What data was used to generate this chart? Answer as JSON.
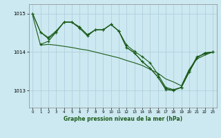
{
  "title": "Graphe pression niveau de la mer (hPa)",
  "bg_color": "#cce8f0",
  "grid_color": "#aaccdc",
  "line_color": "#1a5c1a",
  "xlim": [
    -0.5,
    23.5
  ],
  "ylim": [
    1012.55,
    1015.25
  ],
  "yticks": [
    1013,
    1014,
    1015
  ],
  "xticks": [
    0,
    1,
    2,
    3,
    4,
    5,
    6,
    7,
    8,
    9,
    10,
    11,
    12,
    13,
    14,
    15,
    16,
    17,
    18,
    19,
    20,
    21,
    22,
    23
  ],
  "line1_x": [
    0,
    1,
    2,
    3,
    4,
    5,
    6,
    7,
    8,
    9,
    10,
    11,
    12,
    13,
    14,
    15,
    16,
    17,
    18,
    19,
    20,
    21,
    22,
    23
  ],
  "line1_y": [
    1015.0,
    1014.52,
    1014.35,
    1014.52,
    1014.78,
    1014.78,
    1014.62,
    1014.42,
    1014.58,
    1014.58,
    1014.72,
    1014.55,
    1014.18,
    1014.02,
    1013.88,
    1013.72,
    1013.42,
    1013.08,
    1013.02,
    1013.08,
    1013.52,
    1013.88,
    1013.95,
    1014.0
  ],
  "line2_x": [
    0,
    1,
    2,
    3,
    4,
    5,
    6,
    7,
    8,
    9,
    10,
    11,
    12,
    13,
    14,
    15,
    16,
    17,
    18,
    19,
    20,
    21,
    22,
    23
  ],
  "line2_y": [
    1015.0,
    1014.52,
    1014.38,
    1014.55,
    1014.78,
    1014.78,
    1014.65,
    1014.45,
    1014.58,
    1014.58,
    1014.72,
    1014.55,
    1014.12,
    1013.98,
    1013.75,
    1013.58,
    1013.35,
    1013.02,
    1013.0,
    1013.08,
    1013.48,
    1013.85,
    1013.98,
    1014.0
  ],
  "line3_x": [
    1,
    2,
    3,
    4,
    5,
    6,
    7,
    8,
    9,
    10,
    11,
    12,
    13,
    14,
    15,
    16,
    17,
    18,
    19,
    20,
    21,
    22,
    23
  ],
  "line3_y": [
    1014.2,
    1014.28,
    1014.52,
    1014.78,
    1014.78,
    1014.65,
    1014.45,
    1014.58,
    1014.58,
    1014.72,
    1014.55,
    1014.12,
    1013.98,
    1013.75,
    1013.58,
    1013.35,
    1013.05,
    1013.0,
    1013.08,
    1013.48,
    1013.85,
    1013.98,
    1014.0
  ],
  "line4_x": [
    0,
    1,
    2,
    3,
    4,
    5,
    6,
    7,
    8,
    9,
    10,
    11,
    12,
    13,
    14,
    15,
    16,
    17,
    18,
    19,
    20,
    21,
    22,
    23
  ],
  "line4_y": [
    1014.95,
    1014.18,
    1014.2,
    1014.18,
    1014.15,
    1014.12,
    1014.08,
    1014.05,
    1014.0,
    1013.95,
    1013.9,
    1013.85,
    1013.78,
    1013.72,
    1013.65,
    1013.55,
    1013.45,
    1013.3,
    1013.22,
    1013.12,
    1013.55,
    1013.82,
    1013.92,
    1014.0
  ]
}
